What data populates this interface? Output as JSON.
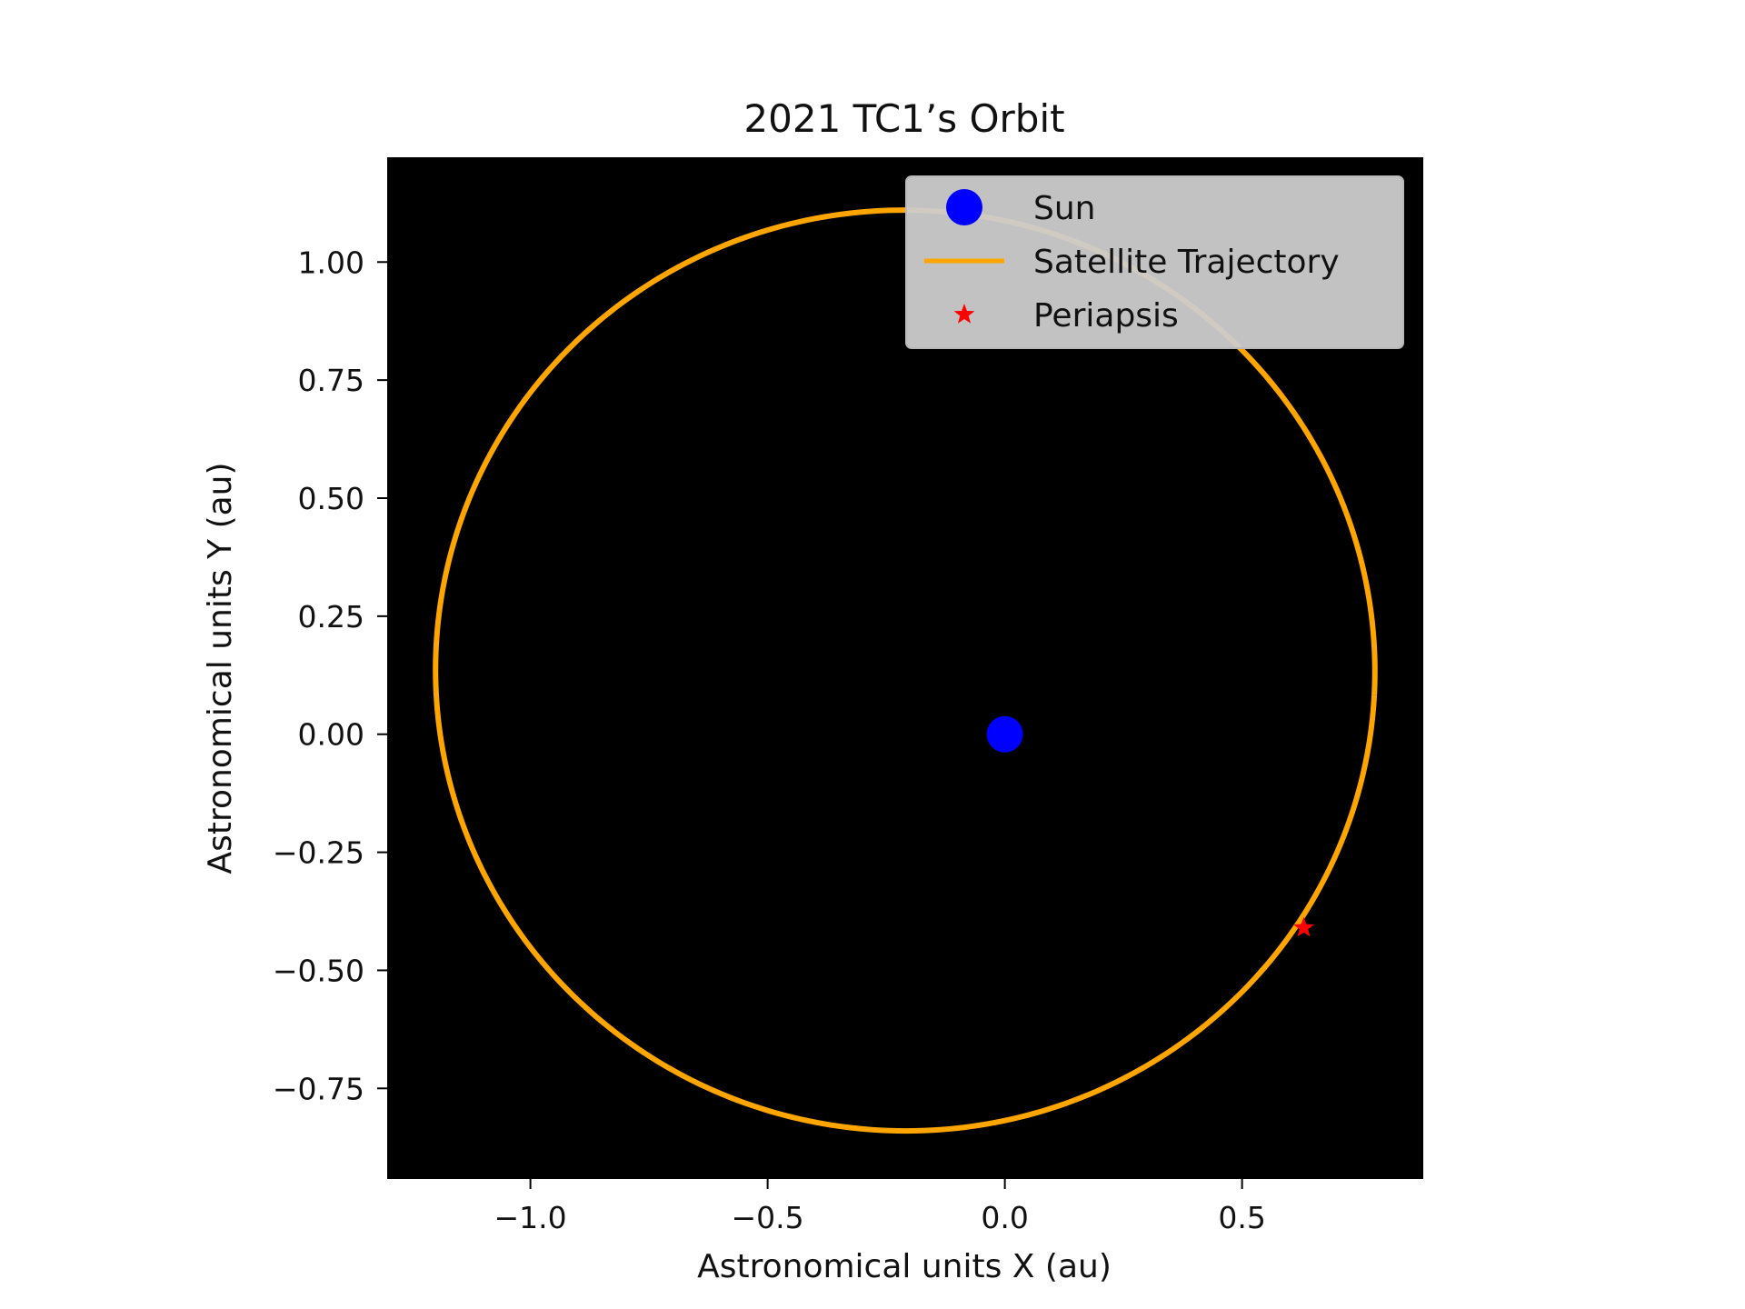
{
  "chart_data": {
    "type": "scatter",
    "title": "2021 TC1’s Orbit",
    "xlabel": "Astronomical units X (au)",
    "ylabel": "Astronomical units Y (au)",
    "xlim": [
      -1.3,
      0.88
    ],
    "ylim": [
      -0.94,
      1.22
    ],
    "x_ticks": [
      -1.0,
      -0.5,
      0.0,
      0.5
    ],
    "x_tick_labels": [
      "−1.0",
      "−0.5",
      "0.0",
      "0.5"
    ],
    "y_ticks": [
      1.0,
      0.75,
      0.5,
      0.25,
      0.0,
      -0.25,
      -0.5,
      -0.75
    ],
    "y_tick_labels": [
      "1.00",
      "0.75",
      "0.50",
      "0.25",
      "0.00",
      "−0.25",
      "−0.50",
      "−0.75"
    ],
    "background": "#000000",
    "grid": false,
    "legend_position": "top-right",
    "series": [
      {
        "name": "Sun",
        "kind": "marker",
        "marker": "circle",
        "color": "#0000ff",
        "points": [
          [
            0.0,
            0.0
          ]
        ]
      },
      {
        "name": "Satellite Trajectory",
        "kind": "ellipse",
        "color": "#ffa500",
        "center": [
          -0.21,
          0.135
        ],
        "semi_axis_x": 0.99,
        "semi_axis_y": 0.975,
        "rotation_deg": -3
      },
      {
        "name": "Periapsis",
        "kind": "marker",
        "marker": "star",
        "color": "#ff0000",
        "points": [
          [
            0.63,
            -0.41
          ]
        ]
      }
    ]
  }
}
